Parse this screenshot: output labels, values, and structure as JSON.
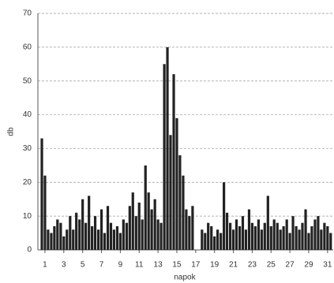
{
  "chart_data": {
    "type": "bar",
    "x_label": "napok",
    "y_label": "db",
    "x": [
      0.67,
      1,
      1.33,
      1.67,
      2,
      2.33,
      2.67,
      3,
      3.33,
      3.67,
      4,
      4.33,
      4.67,
      5,
      5.33,
      5.67,
      6,
      6.33,
      6.67,
      7,
      7.33,
      7.67,
      8,
      8.33,
      8.67,
      9,
      9.33,
      9.67,
      10,
      10.33,
      10.67,
      11,
      11.33,
      11.67,
      12,
      12.33,
      12.67,
      13,
      13.33,
      13.67,
      14,
      14.33,
      14.67,
      15,
      15.33,
      15.67,
      16,
      16.33,
      16.67,
      17,
      17.33,
      17.67,
      18,
      18.33,
      18.67,
      19,
      19.33,
      19.67,
      20,
      20.33,
      20.67,
      21,
      21.33,
      21.67,
      22,
      22.33,
      22.67,
      23,
      23.33,
      23.67,
      24,
      24.33,
      24.67,
      25,
      25.33,
      25.67,
      26,
      26.33,
      26.67,
      27,
      27.33,
      27.67,
      28,
      28.33,
      28.67,
      29,
      29.33,
      29.67,
      30,
      30.33,
      30.67,
      31,
      31.33
    ],
    "values": [
      33,
      22,
      6,
      5,
      7,
      9,
      8,
      4,
      6,
      10,
      6,
      11,
      9,
      15,
      8,
      16,
      7,
      10,
      6,
      12,
      5,
      13,
      8,
      6,
      7,
      5,
      9,
      8,
      13,
      17,
      10,
      14,
      9,
      25,
      17,
      12,
      15,
      9,
      8,
      55,
      60,
      34,
      52,
      39,
      28,
      22,
      12,
      10,
      13,
      0,
      0,
      6,
      5,
      8,
      7,
      4,
      6,
      5,
      20,
      11,
      8,
      6,
      9,
      7,
      10,
      6,
      12,
      8,
      7,
      9,
      6,
      8,
      16,
      7,
      9,
      8,
      6,
      7,
      9,
      5,
      10,
      7,
      6,
      8,
      12,
      5,
      7,
      9,
      10,
      6,
      8,
      7,
      5
    ],
    "color": "#222222",
    "xlim": [
      0.25,
      31.6
    ],
    "xticks": [
      1,
      3,
      5,
      7,
      9,
      11,
      13,
      15,
      17,
      19,
      21,
      23,
      25,
      27,
      29,
      31
    ],
    "ylim": [
      0,
      70
    ],
    "yticks": [
      0,
      10,
      20,
      30,
      40,
      50,
      60,
      70
    ],
    "grid": true
  }
}
